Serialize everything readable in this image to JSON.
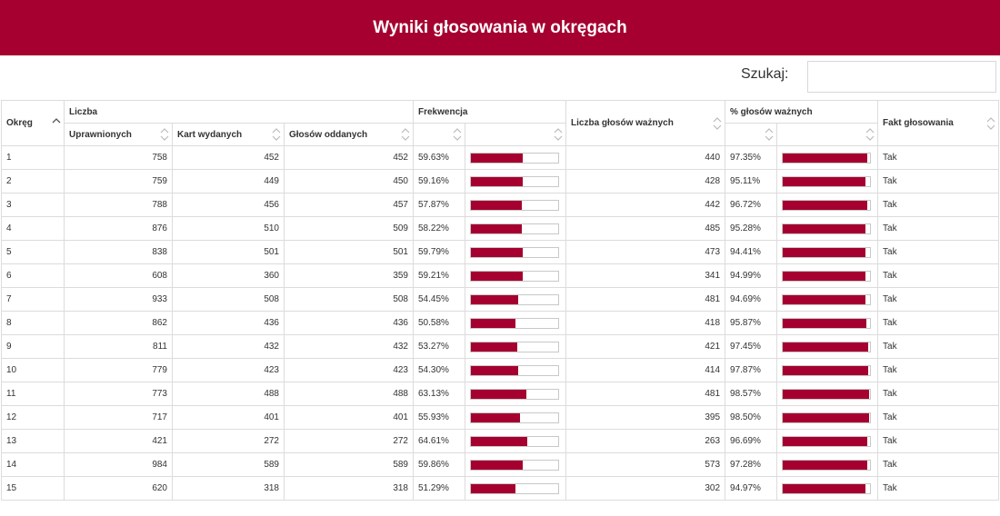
{
  "header": {
    "title": "Wyniki głosowania w okręgach"
  },
  "search": {
    "label": "Szukaj:",
    "value": "",
    "placeholder": ""
  },
  "table": {
    "headers": {
      "okreg": "Okręg",
      "liczba": "Liczba",
      "uprawnionych": "Uprawnionych",
      "kart_wydanych": "Kart wydanych",
      "glosow_oddanych": "Głosów oddanych",
      "frekwencja": "Frekwencja",
      "liczba_glosow_waznych": "Liczba głosów ważnych",
      "procent_glosow_waznych": "% głosów ważnych",
      "fakt_glosowania": "Fakt głosowania"
    },
    "accent_color": "#a5002f",
    "rows": [
      {
        "okreg": "1",
        "uprawnionych": "758",
        "kart_wydanych": "452",
        "glosow_oddanych": "452",
        "frekwencja": "59.63%",
        "frekwencja_value": 59.63,
        "glosow_waznych": "440",
        "procent_waznych": "97.35%",
        "procent_waznych_value": 97.35,
        "fakt": "Tak"
      },
      {
        "okreg": "2",
        "uprawnionych": "759",
        "kart_wydanych": "449",
        "glosow_oddanych": "450",
        "frekwencja": "59.16%",
        "frekwencja_value": 59.16,
        "glosow_waznych": "428",
        "procent_waznych": "95.11%",
        "procent_waznych_value": 95.11,
        "fakt": "Tak"
      },
      {
        "okreg": "3",
        "uprawnionych": "788",
        "kart_wydanych": "456",
        "glosow_oddanych": "457",
        "frekwencja": "57.87%",
        "frekwencja_value": 57.87,
        "glosow_waznych": "442",
        "procent_waznych": "96.72%",
        "procent_waznych_value": 96.72,
        "fakt": "Tak"
      },
      {
        "okreg": "4",
        "uprawnionych": "876",
        "kart_wydanych": "510",
        "glosow_oddanych": "509",
        "frekwencja": "58.22%",
        "frekwencja_value": 58.22,
        "glosow_waznych": "485",
        "procent_waznych": "95.28%",
        "procent_waznych_value": 95.28,
        "fakt": "Tak"
      },
      {
        "okreg": "5",
        "uprawnionych": "838",
        "kart_wydanych": "501",
        "glosow_oddanych": "501",
        "frekwencja": "59.79%",
        "frekwencja_value": 59.79,
        "glosow_waznych": "473",
        "procent_waznych": "94.41%",
        "procent_waznych_value": 94.41,
        "fakt": "Tak"
      },
      {
        "okreg": "6",
        "uprawnionych": "608",
        "kart_wydanych": "360",
        "glosow_oddanych": "359",
        "frekwencja": "59.21%",
        "frekwencja_value": 59.21,
        "glosow_waznych": "341",
        "procent_waznych": "94.99%",
        "procent_waznych_value": 94.99,
        "fakt": "Tak"
      },
      {
        "okreg": "7",
        "uprawnionych": "933",
        "kart_wydanych": "508",
        "glosow_oddanych": "508",
        "frekwencja": "54.45%",
        "frekwencja_value": 54.45,
        "glosow_waznych": "481",
        "procent_waznych": "94.69%",
        "procent_waznych_value": 94.69,
        "fakt": "Tak"
      },
      {
        "okreg": "8",
        "uprawnionych": "862",
        "kart_wydanych": "436",
        "glosow_oddanych": "436",
        "frekwencja": "50.58%",
        "frekwencja_value": 50.58,
        "glosow_waznych": "418",
        "procent_waznych": "95.87%",
        "procent_waznych_value": 95.87,
        "fakt": "Tak"
      },
      {
        "okreg": "9",
        "uprawnionych": "811",
        "kart_wydanych": "432",
        "glosow_oddanych": "432",
        "frekwencja": "53.27%",
        "frekwencja_value": 53.27,
        "glosow_waznych": "421",
        "procent_waznych": "97.45%",
        "procent_waznych_value": 97.45,
        "fakt": "Tak"
      },
      {
        "okreg": "10",
        "uprawnionych": "779",
        "kart_wydanych": "423",
        "glosow_oddanych": "423",
        "frekwencja": "54.30%",
        "frekwencja_value": 54.3,
        "glosow_waznych": "414",
        "procent_waznych": "97.87%",
        "procent_waznych_value": 97.87,
        "fakt": "Tak"
      },
      {
        "okreg": "11",
        "uprawnionych": "773",
        "kart_wydanych": "488",
        "glosow_oddanych": "488",
        "frekwencja": "63.13%",
        "frekwencja_value": 63.13,
        "glosow_waznych": "481",
        "procent_waznych": "98.57%",
        "procent_waznych_value": 98.57,
        "fakt": "Tak"
      },
      {
        "okreg": "12",
        "uprawnionych": "717",
        "kart_wydanych": "401",
        "glosow_oddanych": "401",
        "frekwencja": "55.93%",
        "frekwencja_value": 55.93,
        "glosow_waznych": "395",
        "procent_waznych": "98.50%",
        "procent_waznych_value": 98.5,
        "fakt": "Tak"
      },
      {
        "okreg": "13",
        "uprawnionych": "421",
        "kart_wydanych": "272",
        "glosow_oddanych": "272",
        "frekwencja": "64.61%",
        "frekwencja_value": 64.61,
        "glosow_waznych": "263",
        "procent_waznych": "96.69%",
        "procent_waznych_value": 96.69,
        "fakt": "Tak"
      },
      {
        "okreg": "14",
        "uprawnionych": "984",
        "kart_wydanych": "589",
        "glosow_oddanych": "589",
        "frekwencja": "59.86%",
        "frekwencja_value": 59.86,
        "glosow_waznych": "573",
        "procent_waznych": "97.28%",
        "procent_waznych_value": 97.28,
        "fakt": "Tak"
      },
      {
        "okreg": "15",
        "uprawnionych": "620",
        "kart_wydanych": "318",
        "glosow_oddanych": "318",
        "frekwencja": "51.29%",
        "frekwencja_value": 51.29,
        "glosow_waznych": "302",
        "procent_waznych": "94.97%",
        "procent_waznych_value": 94.97,
        "fakt": "Tak"
      }
    ]
  }
}
